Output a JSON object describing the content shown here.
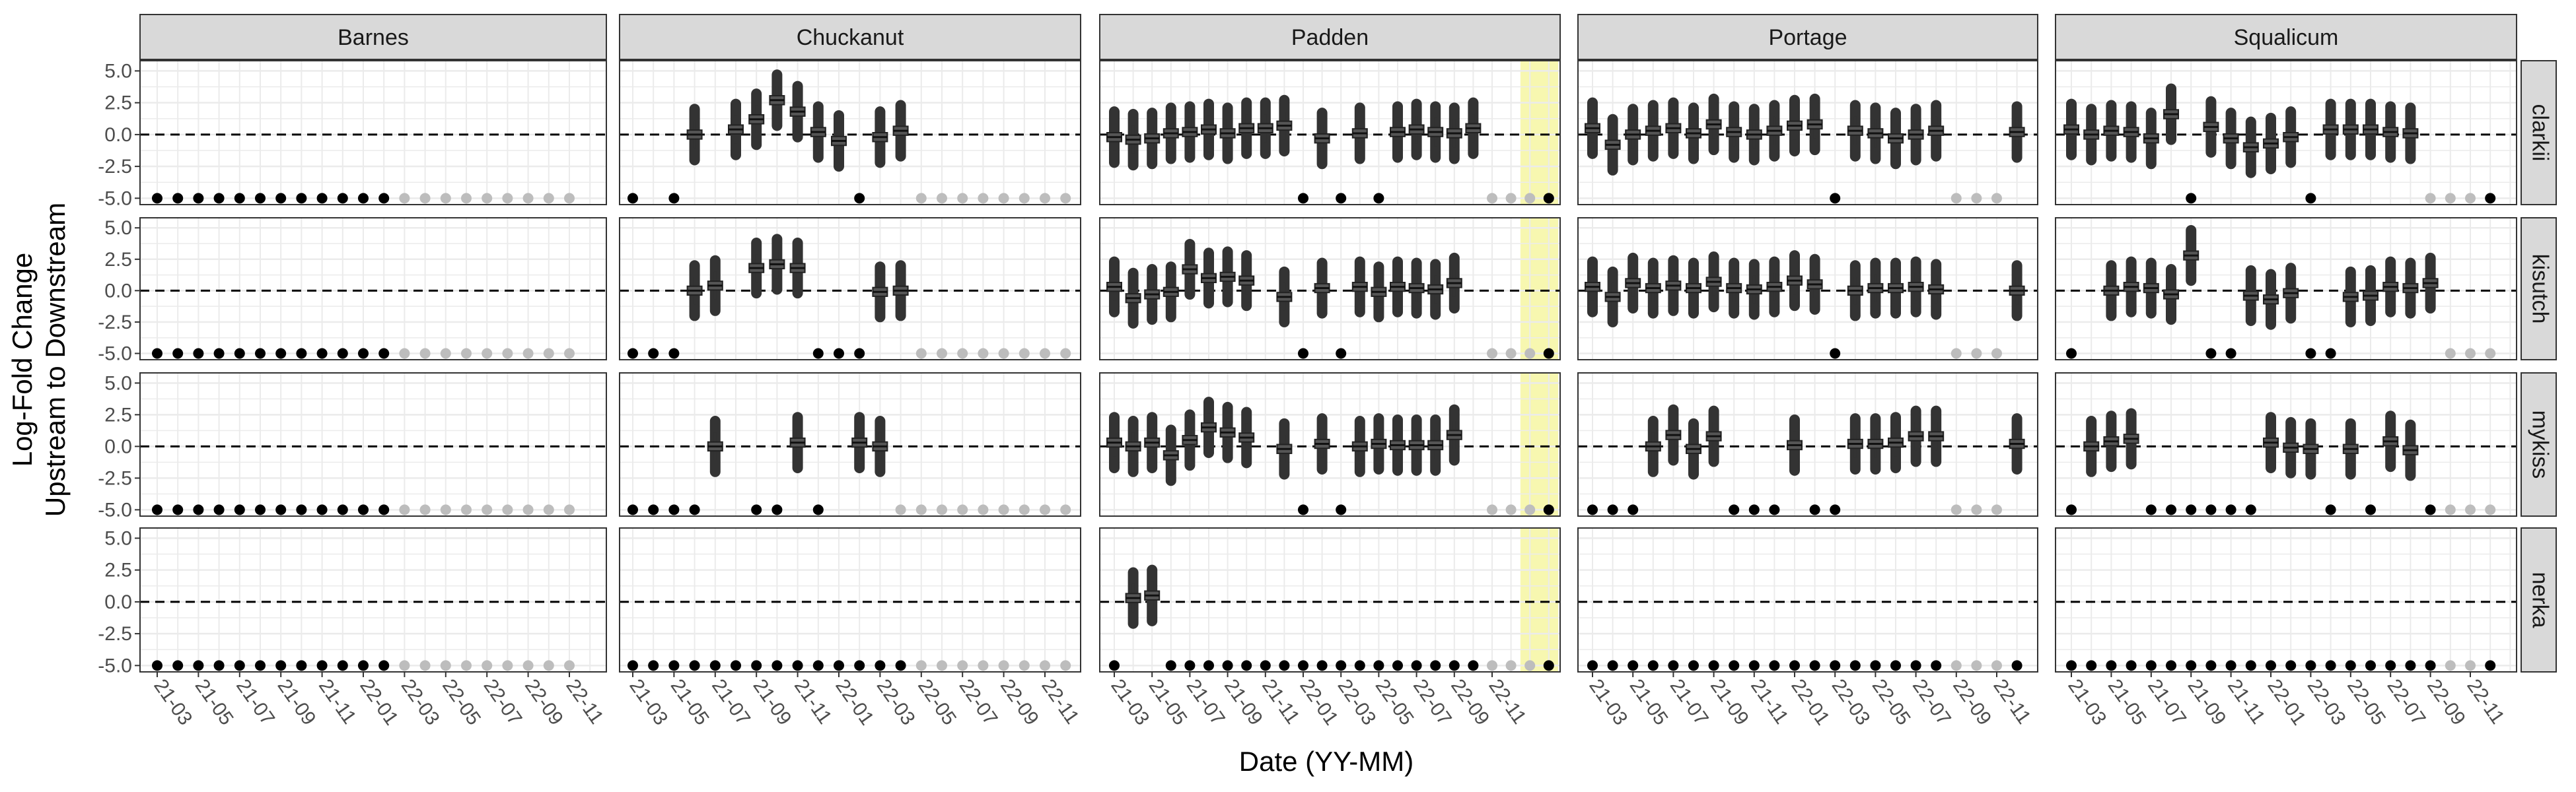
{
  "chart_data": {
    "type": "boxplot-facet-grid",
    "xlabel": "Date (YY-MM)",
    "ylabel": [
      "Log-Fold Change",
      "Upstream to Downstream"
    ],
    "columns": [
      "Barnes",
      "Chuckanut",
      "Padden",
      "Portage",
      "Squalicum"
    ],
    "rows": [
      "clarkii",
      "kisutch",
      "mykiss",
      "nerka"
    ],
    "x_tick_labels": [
      "21-03",
      "21-05",
      "21-07",
      "21-09",
      "21-11",
      "22-01",
      "22-03",
      "22-05",
      "22-07",
      "22-09",
      "22-11"
    ],
    "ylim": [
      -5.5,
      5.8
    ],
    "y_ticks": [
      5.0,
      2.5,
      0.0,
      -2.5,
      -5.0
    ],
    "y_tick_labels": [
      "5.0",
      "2.5",
      "0.0",
      "-2.5",
      "-5.0"
    ],
    "reference_line": 0.0,
    "detection_floor": -5.0,
    "grid": true,
    "colors": {
      "box": "#555555",
      "whisker": "#333333",
      "outlier": "#333333",
      "no_detection": "#000000",
      "not_sampled": "#bdbdbd",
      "highlight": "#f7f7b0",
      "strip_bg": "#d9d9d9",
      "panel_border": "#333333",
      "grid": "#ebebeb"
    },
    "highlight_periods": {
      "Padden": [
        [
          21.5,
          23.5
        ],
        [
          32.5,
          35.5
        ]
      ]
    },
    "panels": {
      "Barnes": {
        "clarkii": {
          "boxes": [],
          "zeros": [
            0,
            1,
            2,
            3,
            4,
            5,
            6,
            7,
            8,
            9,
            10,
            11
          ],
          "grey": [
            12,
            13,
            14,
            15,
            16,
            17,
            18,
            19,
            20
          ]
        },
        "kisutch": {
          "boxes": [],
          "zeros": [
            0,
            1,
            2,
            3,
            4,
            5,
            6,
            7,
            8,
            9,
            10,
            11
          ],
          "grey": [
            12,
            13,
            14,
            15,
            16,
            17,
            18,
            19,
            20
          ]
        },
        "mykiss": {
          "boxes": [],
          "zeros": [
            0,
            1,
            2,
            3,
            4,
            5,
            6,
            7,
            8,
            9,
            10,
            11
          ],
          "grey": [
            12,
            13,
            14,
            15,
            16,
            17,
            18,
            19,
            20
          ]
        },
        "nerka": {
          "boxes": [],
          "zeros": [
            0,
            1,
            2,
            3,
            4,
            5,
            6,
            7,
            8,
            9,
            10,
            11
          ],
          "grey": [
            12,
            13,
            14,
            15,
            16,
            17,
            18,
            19,
            20
          ]
        }
      },
      "Chuckanut": {
        "clarkii": {
          "boxes": [
            [
              3,
              0.0
            ],
            [
              5,
              0.4
            ],
            [
              6,
              1.2
            ],
            [
              7,
              2.7
            ],
            [
              8,
              1.8
            ],
            [
              9,
              0.2
            ],
            [
              10,
              -0.5
            ],
            [
              12,
              -0.2
            ],
            [
              13,
              0.3
            ]
          ],
          "zeros": [
            0,
            2,
            11
          ],
          "grey": [
            14,
            15,
            16,
            17,
            18,
            19,
            20,
            21
          ]
        },
        "kisutch": {
          "boxes": [
            [
              3,
              0.0
            ],
            [
              4,
              0.4
            ],
            [
              6,
              1.8
            ],
            [
              7,
              2.1
            ],
            [
              8,
              1.8
            ],
            [
              12,
              -0.1
            ],
            [
              13,
              0.0
            ]
          ],
          "zeros": [
            0,
            1,
            2,
            9,
            10,
            11
          ],
          "grey": [
            14,
            15,
            16,
            17,
            18,
            19,
            20,
            21
          ]
        },
        "mykiss": {
          "boxes": [
            [
              4,
              0.0
            ],
            [
              8,
              0.3
            ],
            [
              11,
              0.3
            ],
            [
              12,
              0.0
            ]
          ],
          "zeros": [
            0,
            1,
            2,
            3,
            6,
            7,
            9
          ],
          "grey": [
            13,
            14,
            15,
            16,
            17,
            18,
            19,
            20,
            21
          ]
        },
        "nerka": {
          "boxes": [],
          "zeros": [
            0,
            1,
            2,
            3,
            4,
            5,
            6,
            7,
            8,
            9,
            10,
            11,
            12,
            13
          ],
          "grey": [
            14,
            15,
            16,
            17,
            18,
            19,
            20,
            21
          ]
        }
      },
      "Padden": {
        "clarkii": {
          "boxes": [
            [
              0,
              -0.2
            ],
            [
              1,
              -0.4
            ],
            [
              2,
              -0.3
            ],
            [
              3,
              0.1
            ],
            [
              4,
              0.2
            ],
            [
              5,
              0.4
            ],
            [
              6,
              0.1
            ],
            [
              7,
              0.5
            ],
            [
              8,
              0.5
            ],
            [
              9,
              0.7
            ],
            [
              11,
              -0.3
            ],
            [
              13,
              0.1
            ],
            [
              15,
              0.2
            ],
            [
              16,
              0.4
            ],
            [
              17,
              0.2
            ],
            [
              18,
              0.1
            ],
            [
              19,
              0.5
            ]
          ],
          "zeros": [
            10,
            12,
            14,
            23
          ],
          "grey": [
            20,
            21,
            22
          ]
        },
        "kisutch": {
          "boxes": [
            [
              0,
              0.3
            ],
            [
              1,
              -0.6
            ],
            [
              2,
              -0.3
            ],
            [
              3,
              -0.1
            ],
            [
              4,
              1.7
            ],
            [
              5,
              1.0
            ],
            [
              6,
              1.1
            ],
            [
              7,
              0.8
            ],
            [
              9,
              -0.5
            ],
            [
              11,
              0.2
            ],
            [
              13,
              0.3
            ],
            [
              14,
              -0.1
            ],
            [
              15,
              0.3
            ],
            [
              16,
              0.2
            ],
            [
              17,
              0.1
            ],
            [
              18,
              0.6
            ]
          ],
          "zeros": [
            10,
            12,
            23
          ],
          "grey": [
            20,
            21,
            22
          ]
        },
        "mykiss": {
          "boxes": [
            [
              0,
              0.3
            ],
            [
              1,
              0.0
            ],
            [
              2,
              0.3
            ],
            [
              3,
              -0.7
            ],
            [
              4,
              0.5
            ],
            [
              5,
              1.5
            ],
            [
              6,
              1.1
            ],
            [
              7,
              0.7
            ],
            [
              9,
              -0.2
            ],
            [
              11,
              0.2
            ],
            [
              13,
              0.0
            ],
            [
              14,
              0.2
            ],
            [
              15,
              0.1
            ],
            [
              16,
              0.1
            ],
            [
              17,
              0.1
            ],
            [
              18,
              0.9
            ]
          ],
          "zeros": [
            10,
            12,
            23
          ],
          "grey": [
            20,
            21,
            22
          ]
        },
        "nerka": {
          "boxes": [
            [
              1,
              0.3
            ],
            [
              2,
              0.5
            ]
          ],
          "zeros": [
            0,
            3,
            4,
            5,
            6,
            7,
            8,
            9,
            10,
            11,
            12,
            13,
            14,
            15,
            16,
            17,
            18,
            19,
            23
          ],
          "grey": [
            20,
            21,
            22
          ]
        }
      },
      "Portage": {
        "clarkii": {
          "boxes": [
            [
              0,
              0.5
            ],
            [
              1,
              -0.8
            ],
            [
              2,
              0.0
            ],
            [
              3,
              0.3
            ],
            [
              4,
              0.5
            ],
            [
              5,
              0.1
            ],
            [
              6,
              0.8
            ],
            [
              7,
              0.2
            ],
            [
              8,
              0.0
            ],
            [
              9,
              0.3
            ],
            [
              10,
              0.7
            ],
            [
              11,
              0.8
            ],
            [
              13,
              0.3
            ],
            [
              14,
              0.1
            ],
            [
              15,
              -0.3
            ],
            [
              16,
              0.0
            ],
            [
              17,
              0.3
            ],
            [
              21,
              0.2
            ]
          ],
          "zeros": [
            12
          ],
          "grey": [
            18,
            19,
            20
          ]
        },
        "kisutch": {
          "boxes": [
            [
              0,
              0.3
            ],
            [
              1,
              -0.5
            ],
            [
              2,
              0.6
            ],
            [
              3,
              0.2
            ],
            [
              4,
              0.4
            ],
            [
              5,
              0.2
            ],
            [
              6,
              0.7
            ],
            [
              7,
              0.2
            ],
            [
              8,
              0.1
            ],
            [
              9,
              0.3
            ],
            [
              10,
              0.8
            ],
            [
              11,
              0.5
            ],
            [
              13,
              0.0
            ],
            [
              14,
              0.2
            ],
            [
              15,
              0.2
            ],
            [
              16,
              0.3
            ],
            [
              17,
              0.1
            ],
            [
              21,
              0.0
            ]
          ],
          "zeros": [
            12
          ],
          "grey": [
            18,
            19,
            20
          ]
        },
        "mykiss": {
          "boxes": [
            [
              3,
              0.0
            ],
            [
              4,
              0.9
            ],
            [
              5,
              -0.2
            ],
            [
              6,
              0.8
            ],
            [
              10,
              0.1
            ],
            [
              13,
              0.2
            ],
            [
              14,
              0.2
            ],
            [
              15,
              0.3
            ],
            [
              16,
              0.8
            ],
            [
              17,
              0.8
            ],
            [
              21,
              0.2
            ]
          ],
          "zeros": [
            0,
            1,
            2,
            7,
            8,
            9,
            11,
            12
          ],
          "grey": [
            18,
            19,
            20
          ]
        },
        "nerka": {
          "boxes": [],
          "zeros": [
            0,
            1,
            2,
            3,
            4,
            5,
            6,
            7,
            8,
            9,
            10,
            11,
            12,
            13,
            14,
            15,
            16,
            17,
            21
          ],
          "grey": [
            18,
            19,
            20
          ]
        }
      },
      "Squalicum": {
        "clarkii": {
          "boxes": [
            [
              0,
              0.4
            ],
            [
              1,
              0.0
            ],
            [
              2,
              0.3
            ],
            [
              3,
              0.2
            ],
            [
              4,
              -0.3
            ],
            [
              5,
              1.6
            ],
            [
              7,
              0.6
            ],
            [
              8,
              -0.3
            ],
            [
              9,
              -1.0
            ],
            [
              10,
              -0.7
            ],
            [
              11,
              -0.2
            ],
            [
              13,
              0.4
            ],
            [
              14,
              0.4
            ],
            [
              15,
              0.4
            ],
            [
              16,
              0.2
            ],
            [
              17,
              0.1
            ]
          ],
          "zeros": [
            6,
            12,
            21
          ],
          "grey": [
            18,
            19,
            20
          ]
        },
        "kisutch": {
          "boxes": [
            [
              2,
              0.0
            ],
            [
              3,
              0.3
            ],
            [
              4,
              0.2
            ],
            [
              5,
              -0.3
            ],
            [
              6,
              2.8
            ],
            [
              9,
              -0.4
            ],
            [
              10,
              -0.7
            ],
            [
              11,
              -0.2
            ],
            [
              14,
              -0.5
            ],
            [
              15,
              -0.4
            ],
            [
              16,
              0.3
            ],
            [
              17,
              0.2
            ],
            [
              18,
              0.6
            ]
          ],
          "zeros": [
            0,
            7,
            8,
            12,
            13
          ],
          "grey": [
            19,
            20,
            21
          ]
        },
        "mykiss": {
          "boxes": [
            [
              1,
              0.0
            ],
            [
              2,
              0.4
            ],
            [
              3,
              0.6
            ],
            [
              10,
              0.3
            ],
            [
              11,
              -0.1
            ],
            [
              12,
              -0.2
            ],
            [
              14,
              -0.2
            ],
            [
              16,
              0.4
            ],
            [
              17,
              -0.3
            ]
          ],
          "zeros": [
            0,
            4,
            5,
            6,
            7,
            8,
            9,
            13,
            15,
            18
          ],
          "grey": [
            19,
            20,
            21
          ]
        },
        "nerka": {
          "boxes": [],
          "zeros": [
            0,
            1,
            2,
            3,
            4,
            5,
            6,
            7,
            8,
            9,
            10,
            11,
            12,
            13,
            14,
            15,
            16,
            17,
            18,
            21
          ],
          "grey": [
            19,
            20
          ]
        }
      }
    }
  }
}
